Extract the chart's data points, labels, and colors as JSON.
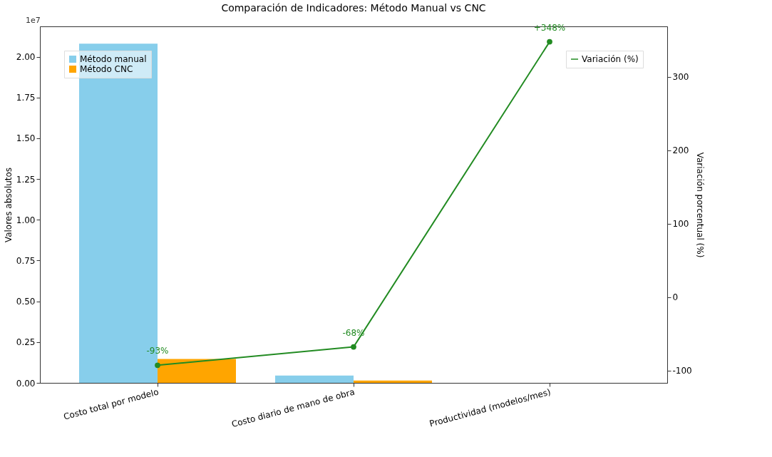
{
  "chart_data": {
    "type": "bar",
    "title": "Comparación de Indicadores: Método Manual vs CNC",
    "categories": [
      "Costo total por modelo",
      "Costo diario de mano de obra",
      "Productividad (modelos/mes)"
    ],
    "series": [
      {
        "name": "Método manual",
        "type": "bar",
        "color": "#87ceeb",
        "values": [
          2.08,
          0.045,
          null
        ]
      },
      {
        "name": "Método CNC",
        "type": "bar",
        "color": "#ffa500",
        "values": [
          0.146,
          0.014,
          null
        ]
      },
      {
        "name": "Variación (%)",
        "type": "line",
        "axis": "y2",
        "color": "#228b22",
        "marker": "circle",
        "values": [
          -93,
          -68,
          348
        ],
        "value_labels": [
          "-93%",
          "-68%",
          "+348%"
        ]
      }
    ],
    "ylabel": "Valores absolutos",
    "y2label": "Variación porcentual (%)",
    "ylim": [
      0,
      2.186
    ],
    "yticks": [
      {
        "value": 0,
        "label": "0.00"
      },
      {
        "value": 0.25,
        "label": "0.25"
      },
      {
        "value": 0.5,
        "label": "0.50"
      },
      {
        "value": 0.75,
        "label": "0.75"
      },
      {
        "value": 1,
        "label": "1.00"
      },
      {
        "value": 1.25,
        "label": "1.25"
      },
      {
        "value": 1.5,
        "label": "1.50"
      },
      {
        "value": 1.75,
        "label": "1.75"
      },
      {
        "value": 2,
        "label": "2.00"
      }
    ],
    "y2lim": [
      -117,
      369
    ],
    "y2ticks": [
      -100,
      0,
      100,
      200,
      300
    ],
    "annotations": [
      "1e7"
    ],
    "legend": "top left",
    "grid": false
  }
}
